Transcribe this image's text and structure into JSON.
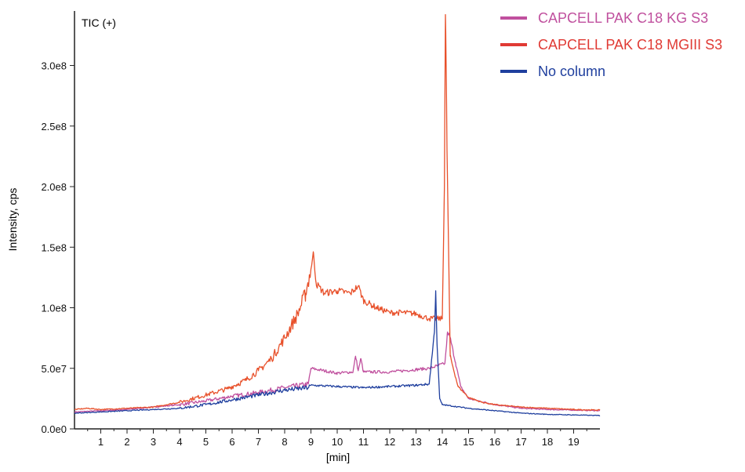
{
  "chart_data": {
    "type": "line",
    "panel_label": "TIC (+)",
    "xlabel": "[min]",
    "ylabel": "Intensity, cps",
    "xlim": [
      0,
      20
    ],
    "ylim": [
      0,
      345000000
    ],
    "x_ticks": [
      1,
      2,
      3,
      4,
      5,
      6,
      7,
      8,
      9,
      10,
      11,
      12,
      13,
      14,
      15,
      16,
      17,
      18,
      19
    ],
    "y_ticks": [
      {
        "value": 0,
        "label": "0.0e0"
      },
      {
        "value": 50000000,
        "label": "5.0e7"
      },
      {
        "value": 100000000,
        "label": "1.0e8"
      },
      {
        "value": 150000000,
        "label": "1.5e8"
      },
      {
        "value": 200000000,
        "label": "2.0e8"
      },
      {
        "value": 250000000,
        "label": "2.5e8"
      },
      {
        "value": 300000000,
        "label": "3.0e8"
      }
    ],
    "grid": false,
    "legend_position": "top-right",
    "series": [
      {
        "name": "CAPCELL PAK C18 KG S3",
        "color": "#c0509e",
        "points": [
          [
            0,
            14000000
          ],
          [
            1,
            15000000
          ],
          [
            2,
            16000000
          ],
          [
            3,
            18000000
          ],
          [
            4,
            20000000
          ],
          [
            5,
            23000000
          ],
          [
            6,
            27000000
          ],
          [
            7,
            30000000
          ],
          [
            8,
            34000000
          ],
          [
            8.9,
            37000000
          ],
          [
            9,
            50000000
          ],
          [
            9.5,
            48000000
          ],
          [
            10,
            46000000
          ],
          [
            10.6,
            47000000
          ],
          [
            10.7,
            60000000
          ],
          [
            10.8,
            48000000
          ],
          [
            10.9,
            58000000
          ],
          [
            11,
            47000000
          ],
          [
            12,
            47000000
          ],
          [
            13,
            49000000
          ],
          [
            13.5,
            50000000
          ],
          [
            13.8,
            52000000
          ],
          [
            14.1,
            54000000
          ],
          [
            14.2,
            80000000
          ],
          [
            14.3,
            75000000
          ],
          [
            14.5,
            55000000
          ],
          [
            14.7,
            35000000
          ],
          [
            15,
            25000000
          ],
          [
            16,
            20000000
          ],
          [
            17,
            17000000
          ],
          [
            18,
            16000000
          ],
          [
            19,
            15500000
          ],
          [
            20,
            15000000
          ]
        ]
      },
      {
        "name": "CAPCELL PAK C18 MGIII S3",
        "color": "#e8502a",
        "points": [
          [
            0,
            16000000
          ],
          [
            0.5,
            17000000
          ],
          [
            1,
            16000000
          ],
          [
            2,
            17000000
          ],
          [
            3,
            18000000
          ],
          [
            4,
            22000000
          ],
          [
            5,
            28000000
          ],
          [
            5.8,
            33000000
          ],
          [
            6.5,
            40000000
          ],
          [
            7,
            48000000
          ],
          [
            7.5,
            58000000
          ],
          [
            8,
            75000000
          ],
          [
            8.5,
            95000000
          ],
          [
            8.8,
            112000000
          ],
          [
            9,
            132000000
          ],
          [
            9.1,
            145000000
          ],
          [
            9.2,
            120000000
          ],
          [
            9.5,
            112000000
          ],
          [
            10,
            114000000
          ],
          [
            10.5,
            112000000
          ],
          [
            10.8,
            118000000
          ],
          [
            11,
            106000000
          ],
          [
            11.5,
            100000000
          ],
          [
            12,
            96000000
          ],
          [
            12.5,
            96000000
          ],
          [
            13,
            95000000
          ],
          [
            13.5,
            91000000
          ],
          [
            14,
            91000000
          ],
          [
            14.08,
            200000000
          ],
          [
            14.12,
            342000000
          ],
          [
            14.18,
            230000000
          ],
          [
            14.3,
            60000000
          ],
          [
            14.6,
            35000000
          ],
          [
            15,
            26000000
          ],
          [
            15.5,
            22000000
          ],
          [
            16,
            20000000
          ],
          [
            17,
            18000000
          ],
          [
            18,
            17000000
          ],
          [
            19,
            16000000
          ],
          [
            20,
            15500000
          ]
        ]
      },
      {
        "name": "No column",
        "color": "#1f3f9e",
        "points": [
          [
            0,
            13000000
          ],
          [
            1,
            14000000
          ],
          [
            2,
            15000000
          ],
          [
            3,
            16000000
          ],
          [
            4,
            17000000
          ],
          [
            5,
            20000000
          ],
          [
            6,
            24000000
          ],
          [
            7,
            28000000
          ],
          [
            8,
            32000000
          ],
          [
            8.9,
            34000000
          ],
          [
            9,
            36000000
          ],
          [
            10,
            35000000
          ],
          [
            11,
            34000000
          ],
          [
            12,
            35000000
          ],
          [
            13,
            36000000
          ],
          [
            13.5,
            37000000
          ],
          [
            13.7,
            80000000
          ],
          [
            13.75,
            114000000
          ],
          [
            13.8,
            70000000
          ],
          [
            13.9,
            25000000
          ],
          [
            14,
            20000000
          ],
          [
            15,
            17000000
          ],
          [
            16,
            15000000
          ],
          [
            17,
            13000000
          ],
          [
            18,
            12000000
          ],
          [
            19,
            11500000
          ],
          [
            20,
            11000000
          ]
        ]
      }
    ]
  }
}
